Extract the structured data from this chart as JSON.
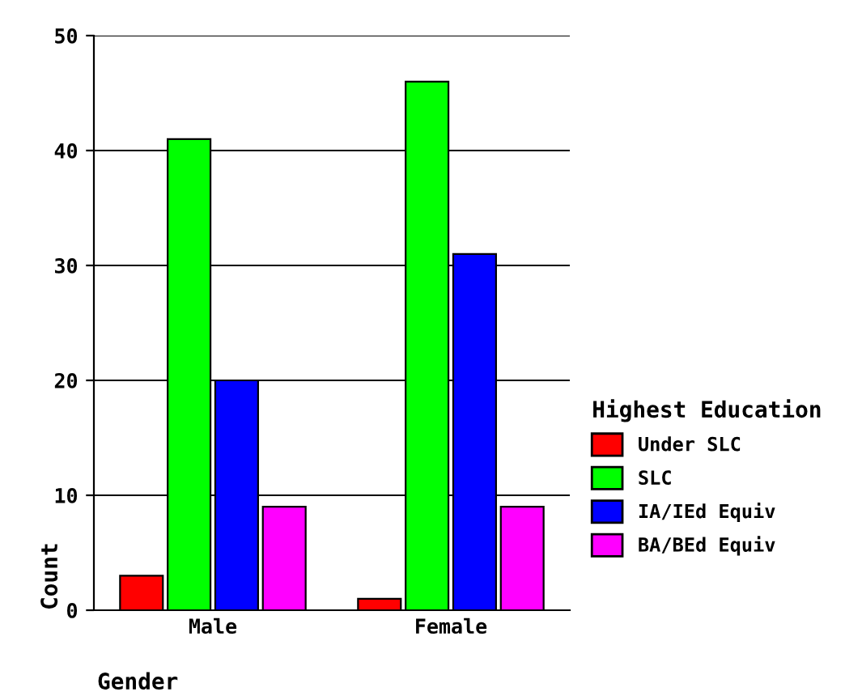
{
  "chart_data": {
    "type": "bar",
    "xlabel": "Gender",
    "ylabel": "Count",
    "legend_title": "Highest Education",
    "categories": [
      "Male",
      "Female"
    ],
    "series": [
      {
        "name": "Under SLC",
        "color": "#ff0000",
        "values": [
          3,
          1
        ]
      },
      {
        "name": "SLC",
        "color": "#00ff00",
        "values": [
          41,
          46
        ]
      },
      {
        "name": "IA/IEd Equiv",
        "color": "#0000ff",
        "values": [
          20,
          31
        ]
      },
      {
        "name": "BA/BEd Equiv",
        "color": "#ff00ff",
        "values": [
          9,
          9
        ]
      }
    ],
    "ylim": [
      0,
      50
    ],
    "yticks": [
      0,
      10,
      20,
      30,
      40,
      50
    ],
    "grid": "y",
    "legend": "right"
  }
}
